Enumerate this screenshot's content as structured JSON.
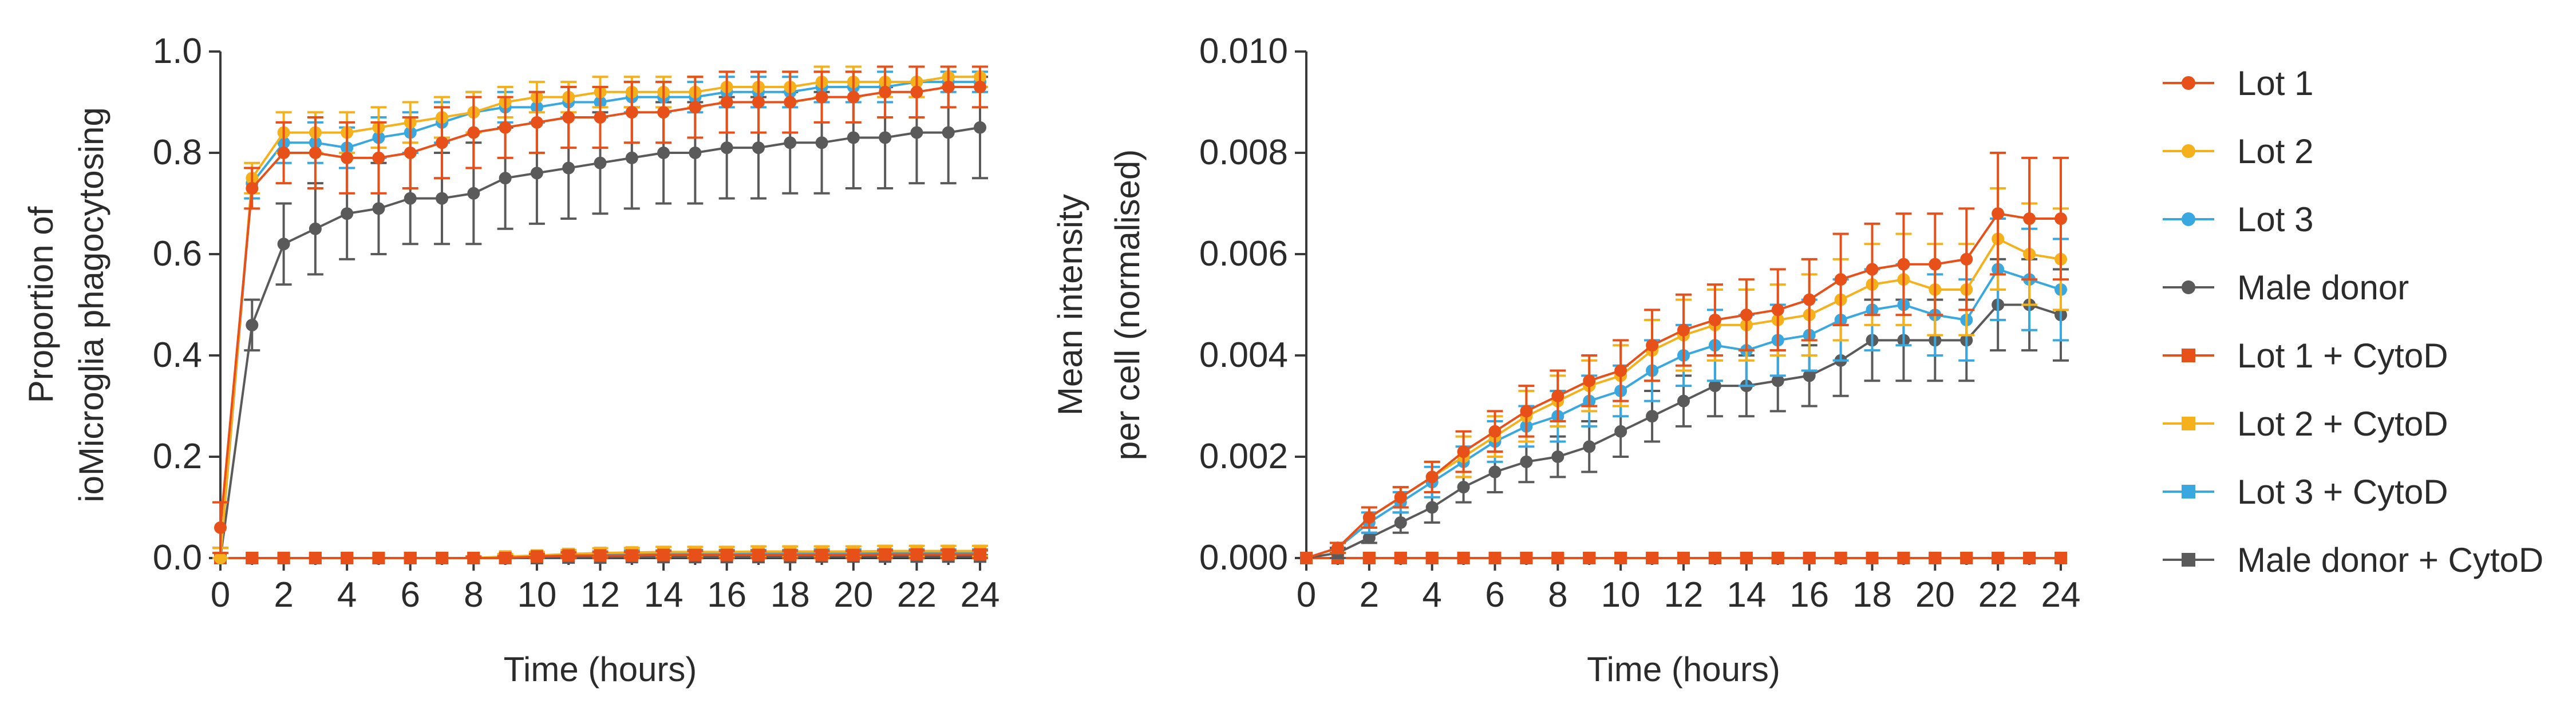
{
  "chart_data": [
    {
      "type": "line",
      "title": "",
      "xlabel": "Time (hours)",
      "ylabel_lines": [
        "Proportion of",
        "ioMicroglia phagocytosing"
      ],
      "xlim": [
        0,
        24
      ],
      "ylim": [
        0,
        1
      ],
      "xticks": [
        "0",
        "2",
        "4",
        "6",
        "8",
        "10",
        "12",
        "14",
        "16",
        "18",
        "20",
        "22",
        "24"
      ],
      "yticks": [
        "0.0",
        "0.2",
        "0.4",
        "0.6",
        "0.8",
        "1.0"
      ],
      "x": [
        0,
        1,
        2,
        3,
        4,
        5,
        6,
        7,
        8,
        9,
        10,
        11,
        12,
        13,
        14,
        15,
        16,
        17,
        18,
        19,
        20,
        21,
        22,
        23,
        24
      ],
      "series": [
        {
          "name": "Lot 1",
          "color": "#e8501a",
          "marker": "circle",
          "values": [
            0.06,
            0.73,
            0.8,
            0.8,
            0.79,
            0.79,
            0.8,
            0.82,
            0.84,
            0.85,
            0.86,
            0.87,
            0.87,
            0.88,
            0.88,
            0.89,
            0.9,
            0.9,
            0.9,
            0.91,
            0.91,
            0.92,
            0.92,
            0.93,
            0.93
          ],
          "errors": [
            0.05,
            0.04,
            0.06,
            0.07,
            0.07,
            0.07,
            0.07,
            0.07,
            0.07,
            0.06,
            0.06,
            0.06,
            0.06,
            0.06,
            0.06,
            0.06,
            0.06,
            0.06,
            0.06,
            0.05,
            0.05,
            0.05,
            0.05,
            0.04,
            0.04
          ]
        },
        {
          "name": "Lot 2",
          "color": "#f5b11b",
          "marker": "circle",
          "values": [
            0.0,
            0.75,
            0.84,
            0.84,
            0.84,
            0.85,
            0.86,
            0.87,
            0.88,
            0.9,
            0.91,
            0.91,
            0.92,
            0.92,
            0.92,
            0.92,
            0.93,
            0.93,
            0.93,
            0.94,
            0.94,
            0.94,
            0.94,
            0.95,
            0.95
          ],
          "errors": [
            0.02,
            0.03,
            0.04,
            0.04,
            0.04,
            0.04,
            0.04,
            0.04,
            0.04,
            0.03,
            0.03,
            0.03,
            0.03,
            0.03,
            0.03,
            0.03,
            0.03,
            0.03,
            0.03,
            0.03,
            0.03,
            0.03,
            0.03,
            0.02,
            0.02
          ]
        },
        {
          "name": "Lot 3",
          "color": "#3aa8e0",
          "marker": "circle",
          "values": [
            0.0,
            0.74,
            0.82,
            0.82,
            0.81,
            0.83,
            0.84,
            0.86,
            0.88,
            0.89,
            0.89,
            0.9,
            0.9,
            0.91,
            0.91,
            0.91,
            0.92,
            0.92,
            0.92,
            0.93,
            0.93,
            0.93,
            0.94,
            0.94,
            0.94
          ],
          "errors": [
            0.02,
            0.03,
            0.04,
            0.04,
            0.04,
            0.04,
            0.04,
            0.04,
            0.04,
            0.03,
            0.03,
            0.03,
            0.03,
            0.03,
            0.03,
            0.03,
            0.03,
            0.03,
            0.03,
            0.03,
            0.03,
            0.03,
            0.03,
            0.02,
            0.02
          ]
        },
        {
          "name": "Male donor",
          "color": "#5a5a5a",
          "marker": "circle",
          "values": [
            0.0,
            0.46,
            0.62,
            0.65,
            0.68,
            0.69,
            0.71,
            0.71,
            0.72,
            0.75,
            0.76,
            0.77,
            0.78,
            0.79,
            0.8,
            0.8,
            0.81,
            0.81,
            0.82,
            0.82,
            0.83,
            0.83,
            0.84,
            0.84,
            0.85
          ],
          "errors": [
            0.02,
            0.05,
            0.08,
            0.09,
            0.09,
            0.09,
            0.09,
            0.09,
            0.1,
            0.1,
            0.1,
            0.1,
            0.1,
            0.1,
            0.1,
            0.1,
            0.1,
            0.1,
            0.1,
            0.1,
            0.1,
            0.1,
            0.1,
            0.1,
            0.1
          ]
        },
        {
          "name": "Lot 1 + CytoD",
          "color": "#e8501a",
          "marker": "square",
          "values": [
            0.0,
            0.0,
            0.0,
            0.0,
            0.0,
            0.0,
            0.0,
            0.0,
            0.0,
            0.0,
            0.003,
            0.005,
            0.005,
            0.005,
            0.006,
            0.006,
            0.006,
            0.006,
            0.006,
            0.006,
            0.006,
            0.007,
            0.007,
            0.007,
            0.007
          ],
          "errors": [
            0,
            0,
            0,
            0,
            0,
            0,
            0,
            0,
            0.003,
            0.004,
            0.005,
            0.006,
            0.007,
            0.007,
            0.008,
            0.008,
            0.008,
            0.008,
            0.008,
            0.008,
            0.008,
            0.008,
            0.008,
            0.008,
            0.008
          ]
        },
        {
          "name": "Lot 2 + CytoD",
          "color": "#f5b11b",
          "marker": "square",
          "values": [
            0.0,
            0.0,
            0.0,
            0.0,
            0.0,
            0.0,
            0.0,
            0.0,
            0.0,
            0.003,
            0.005,
            0.008,
            0.01,
            0.011,
            0.012,
            0.012,
            0.012,
            0.013,
            0.013,
            0.013,
            0.013,
            0.014,
            0.014,
            0.014,
            0.014
          ],
          "errors": [
            0,
            0,
            0,
            0,
            0,
            0,
            0,
            0,
            0.003,
            0.005,
            0.007,
            0.008,
            0.009,
            0.009,
            0.01,
            0.01,
            0.01,
            0.01,
            0.01,
            0.01,
            0.01,
            0.01,
            0.01,
            0.01,
            0.01
          ]
        },
        {
          "name": "Lot 3 + CytoD",
          "color": "#3aa8e0",
          "marker": "square",
          "values": [
            0.0,
            0.0,
            0.0,
            0.0,
            0.0,
            0.0,
            0.0,
            0.0,
            0.0,
            0.002,
            0.004,
            0.006,
            0.007,
            0.008,
            0.008,
            0.009,
            0.009,
            0.009,
            0.009,
            0.01,
            0.01,
            0.01,
            0.01,
            0.01,
            0.01
          ],
          "errors": [
            0,
            0,
            0,
            0,
            0,
            0,
            0,
            0,
            0.002,
            0.004,
            0.005,
            0.006,
            0.006,
            0.007,
            0.007,
            0.007,
            0.007,
            0.007,
            0.007,
            0.007,
            0.007,
            0.007,
            0.007,
            0.007,
            0.007
          ]
        },
        {
          "name": "Male donor + CytoD",
          "color": "#5a5a5a",
          "marker": "square",
          "values": [
            0.0,
            0.0,
            0.0,
            0.0,
            0.0,
            0.0,
            0.0,
            0.0,
            0.0,
            0.0,
            0.0,
            0.001,
            0.001,
            0.002,
            0.002,
            0.002,
            0.002,
            0.002,
            0.002,
            0.003,
            0.003,
            0.003,
            0.003,
            0.003,
            0.003
          ],
          "errors": [
            0,
            0,
            0,
            0,
            0,
            0,
            0,
            0,
            0,
            0,
            0,
            0.002,
            0.002,
            0.002,
            0.003,
            0.003,
            0.003,
            0.003,
            0.003,
            0.003,
            0.003,
            0.003,
            0.003,
            0.003,
            0.003
          ]
        }
      ]
    },
    {
      "type": "line",
      "title": "",
      "xlabel": "Time (hours)",
      "ylabel_lines": [
        "Mean intensity",
        "per cell (normalised)"
      ],
      "xlim": [
        0,
        24
      ],
      "ylim": [
        0,
        0.01
      ],
      "xticks": [
        "0",
        "2",
        "4",
        "6",
        "8",
        "10",
        "12",
        "14",
        "16",
        "18",
        "20",
        "22",
        "24"
      ],
      "yticks": [
        "0.000",
        "0.002",
        "0.004",
        "0.006",
        "0.008",
        "0.010"
      ],
      "x": [
        0,
        1,
        2,
        3,
        4,
        5,
        6,
        7,
        8,
        9,
        10,
        11,
        12,
        13,
        14,
        15,
        16,
        17,
        18,
        19,
        20,
        21,
        22,
        23,
        24
      ],
      "series": [
        {
          "name": "Lot 1",
          "color": "#e8501a",
          "marker": "circle",
          "values": [
            0.0,
            0.0002,
            0.0008,
            0.0012,
            0.0016,
            0.0021,
            0.0025,
            0.0029,
            0.0032,
            0.0035,
            0.0037,
            0.0042,
            0.0045,
            0.0047,
            0.0048,
            0.0049,
            0.0051,
            0.0055,
            0.0057,
            0.0058,
            0.0058,
            0.0059,
            0.0068,
            0.0067,
            0.0067
          ],
          "errors": [
            0.0,
            0.0001,
            0.0002,
            0.0002,
            0.0003,
            0.0004,
            0.0004,
            0.0005,
            0.0005,
            0.0005,
            0.0006,
            0.0007,
            0.0007,
            0.0007,
            0.0007,
            0.0008,
            0.0008,
            0.0009,
            0.0009,
            0.001,
            0.001,
            0.001,
            0.0012,
            0.0012,
            0.0012
          ]
        },
        {
          "name": "Lot 2",
          "color": "#f5b11b",
          "marker": "circle",
          "values": [
            0.0,
            0.0002,
            0.0008,
            0.0012,
            0.0016,
            0.002,
            0.0024,
            0.0028,
            0.0031,
            0.0034,
            0.0036,
            0.0041,
            0.0044,
            0.0046,
            0.0046,
            0.0047,
            0.0048,
            0.0051,
            0.0054,
            0.0055,
            0.0053,
            0.0053,
            0.0063,
            0.006,
            0.0059
          ],
          "errors": [
            0.0,
            0.0001,
            0.0002,
            0.0002,
            0.0003,
            0.0004,
            0.0004,
            0.0005,
            0.0005,
            0.0005,
            0.0006,
            0.0006,
            0.0007,
            0.0007,
            0.0007,
            0.0007,
            0.0008,
            0.0008,
            0.0008,
            0.0009,
            0.0009,
            0.0009,
            0.001,
            0.001,
            0.001
          ]
        },
        {
          "name": "Lot 3",
          "color": "#3aa8e0",
          "marker": "circle",
          "values": [
            0.0,
            0.0002,
            0.0007,
            0.0011,
            0.0015,
            0.0019,
            0.0023,
            0.0026,
            0.0028,
            0.0031,
            0.0033,
            0.0037,
            0.004,
            0.0042,
            0.0041,
            0.0043,
            0.0044,
            0.0047,
            0.0049,
            0.005,
            0.0048,
            0.0047,
            0.0057,
            0.0055,
            0.0053
          ],
          "errors": [
            0.0,
            0.0001,
            0.0002,
            0.0002,
            0.0003,
            0.0003,
            0.0004,
            0.0004,
            0.0005,
            0.0005,
            0.0005,
            0.0006,
            0.0006,
            0.0007,
            0.0007,
            0.0007,
            0.0007,
            0.0008,
            0.0008,
            0.0008,
            0.0008,
            0.0008,
            0.001,
            0.001,
            0.001
          ]
        },
        {
          "name": "Male donor",
          "color": "#5a5a5a",
          "marker": "circle",
          "values": [
            0.0,
            0.0001,
            0.0004,
            0.0007,
            0.001,
            0.0014,
            0.0017,
            0.0019,
            0.002,
            0.0022,
            0.0025,
            0.0028,
            0.0031,
            0.0034,
            0.0034,
            0.0035,
            0.0036,
            0.0039,
            0.0043,
            0.0043,
            0.0043,
            0.0043,
            0.005,
            0.005,
            0.0048
          ],
          "errors": [
            0.0,
            0.0001,
            0.0001,
            0.0002,
            0.0003,
            0.0003,
            0.0004,
            0.0004,
            0.0004,
            0.0005,
            0.0005,
            0.0005,
            0.0005,
            0.0006,
            0.0006,
            0.0006,
            0.0006,
            0.0007,
            0.0008,
            0.0008,
            0.0008,
            0.0008,
            0.0009,
            0.0009,
            0.0009
          ]
        },
        {
          "name": "Lot 1 + CytoD",
          "color": "#e8501a",
          "marker": "square",
          "values": [
            0,
            0,
            0,
            0,
            0,
            0,
            0,
            0,
            0,
            0,
            0,
            0,
            0,
            0,
            0,
            0,
            0,
            0,
            0,
            0,
            0,
            0,
            0,
            0,
            0
          ],
          "errors": [
            0,
            0,
            0,
            0,
            0,
            0,
            0,
            0,
            0,
            0,
            0,
            0,
            0,
            0,
            0,
            0,
            0,
            0,
            0,
            0,
            0,
            0,
            0,
            0,
            0
          ]
        },
        {
          "name": "Lot 2 + CytoD",
          "color": "#f5b11b",
          "marker": "square",
          "values": [
            0,
            0,
            0,
            0,
            0,
            0,
            0,
            0,
            0,
            0,
            0,
            0,
            0,
            0,
            0,
            0,
            0,
            0,
            0,
            0,
            0,
            0,
            0,
            0,
            0
          ],
          "errors": [
            0,
            0,
            0,
            0,
            0,
            0,
            0,
            0,
            0,
            0,
            0,
            0,
            0,
            0,
            0,
            0,
            0,
            0,
            0,
            0,
            0,
            0,
            0,
            0,
            0
          ]
        },
        {
          "name": "Lot 3 + CytoD",
          "color": "#3aa8e0",
          "marker": "square",
          "values": [
            0,
            0,
            0,
            0,
            0,
            0,
            0,
            0,
            0,
            0,
            0,
            0,
            0,
            0,
            0,
            0,
            0,
            0,
            0,
            0,
            0,
            0,
            0,
            0,
            0
          ],
          "errors": [
            0,
            0,
            0,
            0,
            0,
            0,
            0,
            0,
            0,
            0,
            0,
            0,
            0,
            0,
            0,
            0,
            0,
            0,
            0,
            0,
            0,
            0,
            0,
            0,
            0
          ]
        },
        {
          "name": "Male donor + CytoD",
          "color": "#5a5a5a",
          "marker": "square",
          "values": [
            0,
            0,
            0,
            0,
            0,
            0,
            0,
            0,
            0,
            0,
            0,
            0,
            0,
            0,
            0,
            0,
            0,
            0,
            0,
            0,
            0,
            0,
            0,
            0,
            0
          ],
          "errors": [
            0,
            0,
            0,
            0,
            0,
            0,
            0,
            0,
            0,
            0,
            0,
            0,
            0,
            0,
            0,
            0,
            0,
            0,
            0,
            0,
            0,
            0,
            0,
            0,
            0
          ]
        }
      ]
    }
  ],
  "legend": {
    "placement": "right",
    "entries": [
      {
        "label": "Lot 1",
        "color": "#e8501a",
        "marker": "circle"
      },
      {
        "label": "Lot 2",
        "color": "#f5b11b",
        "marker": "circle"
      },
      {
        "label": "Lot 3",
        "color": "#3aa8e0",
        "marker": "circle"
      },
      {
        "label": "Male donor",
        "color": "#5a5a5a",
        "marker": "circle"
      },
      {
        "label": "Lot 1 + CytoD",
        "color": "#e8501a",
        "marker": "square"
      },
      {
        "label": "Lot 2 + CytoD",
        "color": "#f5b11b",
        "marker": "square"
      },
      {
        "label": "Lot 3 + CytoD",
        "color": "#3aa8e0",
        "marker": "square"
      },
      {
        "label": "Male donor + CytoD",
        "color": "#5a5a5a",
        "marker": "square"
      }
    ]
  }
}
